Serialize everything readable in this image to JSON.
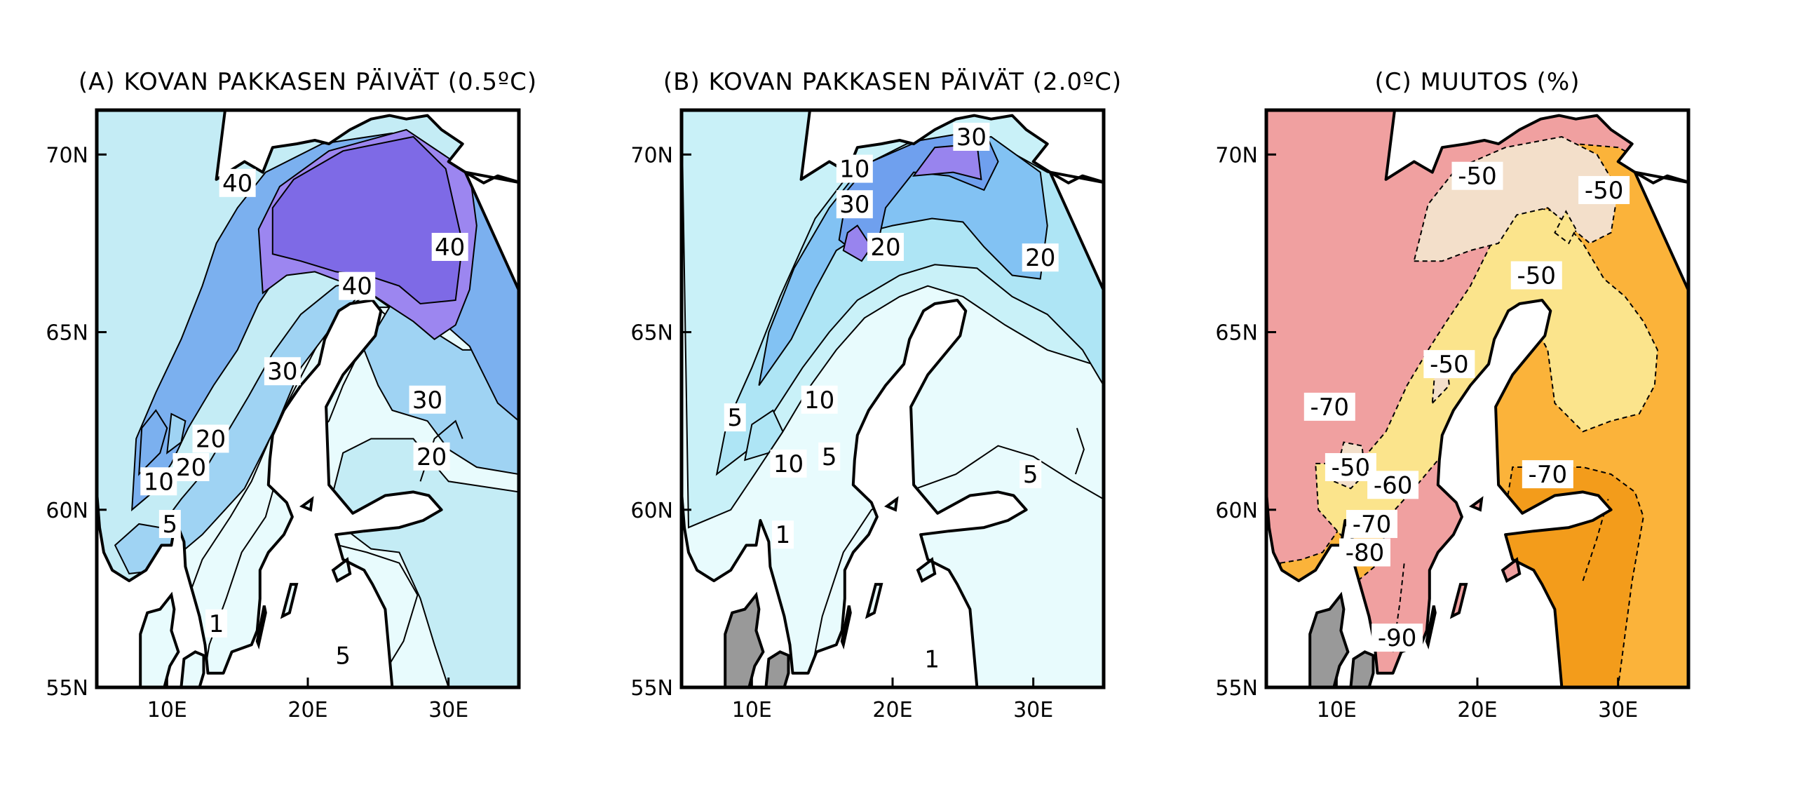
{
  "figure": {
    "panels": [
      {
        "title": "(A) KOVAN PAKKASEN PÄIVÄT (0.5ºC)",
        "colors": {
          "sea": "#ffffff",
          "zone0": "#e8fbfd",
          "zone1": "#c4ecf5",
          "zone2": "#9fd3f3",
          "zone3": "#7bb0ef",
          "zone4": "#9c86f0",
          "zone5": "#7e6ae6"
        },
        "contour_labels": [
          {
            "text": "40",
            "lon": 15.0,
            "lat": 69.2
          },
          {
            "text": "40",
            "lon": 30.1,
            "lat": 67.4
          },
          {
            "text": "40",
            "lon": 23.5,
            "lat": 66.3
          },
          {
            "text": "30",
            "lon": 18.2,
            "lat": 63.9
          },
          {
            "text": "30",
            "lon": 28.5,
            "lat": 63.1
          },
          {
            "text": "20",
            "lon": 13.1,
            "lat": 62.0
          },
          {
            "text": "20",
            "lon": 11.7,
            "lat": 61.2
          },
          {
            "text": "10",
            "lon": 9.4,
            "lat": 60.8
          },
          {
            "text": "20",
            "lon": 28.8,
            "lat": 61.5
          },
          {
            "text": "5",
            "lon": 10.2,
            "lat": 59.6
          },
          {
            "text": "1",
            "lon": 13.5,
            "lat": 56.8
          },
          {
            "text": "5",
            "lon": 22.5,
            "lat": 55.9
          }
        ]
      },
      {
        "title": "(B) KOVAN PAKKASEN PÄIVÄT (2.0ºC)",
        "colors": {
          "sea": "#ffffff",
          "zone0": "#e8fbfd",
          "zone1": "#c9f1f8",
          "zone2": "#aee5f5",
          "zone3": "#82c2f3",
          "zone4": "#6fa0ee",
          "zone5": "#9884ee"
        },
        "contour_labels": [
          {
            "text": "30",
            "lon": 25.6,
            "lat": 70.5
          },
          {
            "text": "10",
            "lon": 17.3,
            "lat": 69.6
          },
          {
            "text": "30",
            "lon": 17.3,
            "lat": 68.6
          },
          {
            "text": "20",
            "lon": 19.5,
            "lat": 67.4
          },
          {
            "text": "20",
            "lon": 30.5,
            "lat": 67.1
          },
          {
            "text": "10",
            "lon": 14.8,
            "lat": 63.1
          },
          {
            "text": "5",
            "lon": 8.8,
            "lat": 62.6
          },
          {
            "text": "10",
            "lon": 12.6,
            "lat": 61.3
          },
          {
            "text": "5",
            "lon": 15.5,
            "lat": 61.5
          },
          {
            "text": "5",
            "lon": 29.8,
            "lat": 61.0
          },
          {
            "text": "1",
            "lon": 12.2,
            "lat": 59.3
          },
          {
            "text": "1",
            "lon": 22.8,
            "lat": 55.8
          }
        ]
      },
      {
        "title": "(C) MUUTOS (%)",
        "colors": {
          "sea": "#ffffff",
          "zone0": "#f39c1b",
          "zone1": "#fbb33a",
          "zone2": "#fbe48c",
          "zone3": "#f3dfca",
          "zone4": "#f0a0a0",
          "dk": "#999999"
        },
        "contour_labels": [
          {
            "text": "-50",
            "lon": 20.0,
            "lat": 69.4
          },
          {
            "text": "-50",
            "lon": 29.0,
            "lat": 69.0
          },
          {
            "text": "-50",
            "lon": 24.2,
            "lat": 66.6
          },
          {
            "text": "-50",
            "lon": 18.0,
            "lat": 64.1
          },
          {
            "text": "-70",
            "lon": 9.5,
            "lat": 62.9
          },
          {
            "text": "-50",
            "lon": 11.0,
            "lat": 61.2
          },
          {
            "text": "-60",
            "lon": 14.0,
            "lat": 60.7
          },
          {
            "text": "-70",
            "lon": 25.0,
            "lat": 61.0
          },
          {
            "text": "-70",
            "lon": 12.5,
            "lat": 59.6
          },
          {
            "text": "-80",
            "lon": 12.0,
            "lat": 58.8
          },
          {
            "text": "-90",
            "lon": 14.3,
            "lat": 56.4
          }
        ]
      }
    ],
    "axes": {
      "lon_range": [
        5,
        35
      ],
      "lat_range": [
        55,
        71.25
      ],
      "x_ticks": [
        "10E",
        "20E",
        "30E"
      ],
      "x_tick_values": [
        10,
        20,
        30
      ],
      "y_ticks": [
        "55N",
        "60N",
        "65N",
        "70N"
      ],
      "y_tick_values": [
        55,
        60,
        65,
        70
      ]
    }
  }
}
